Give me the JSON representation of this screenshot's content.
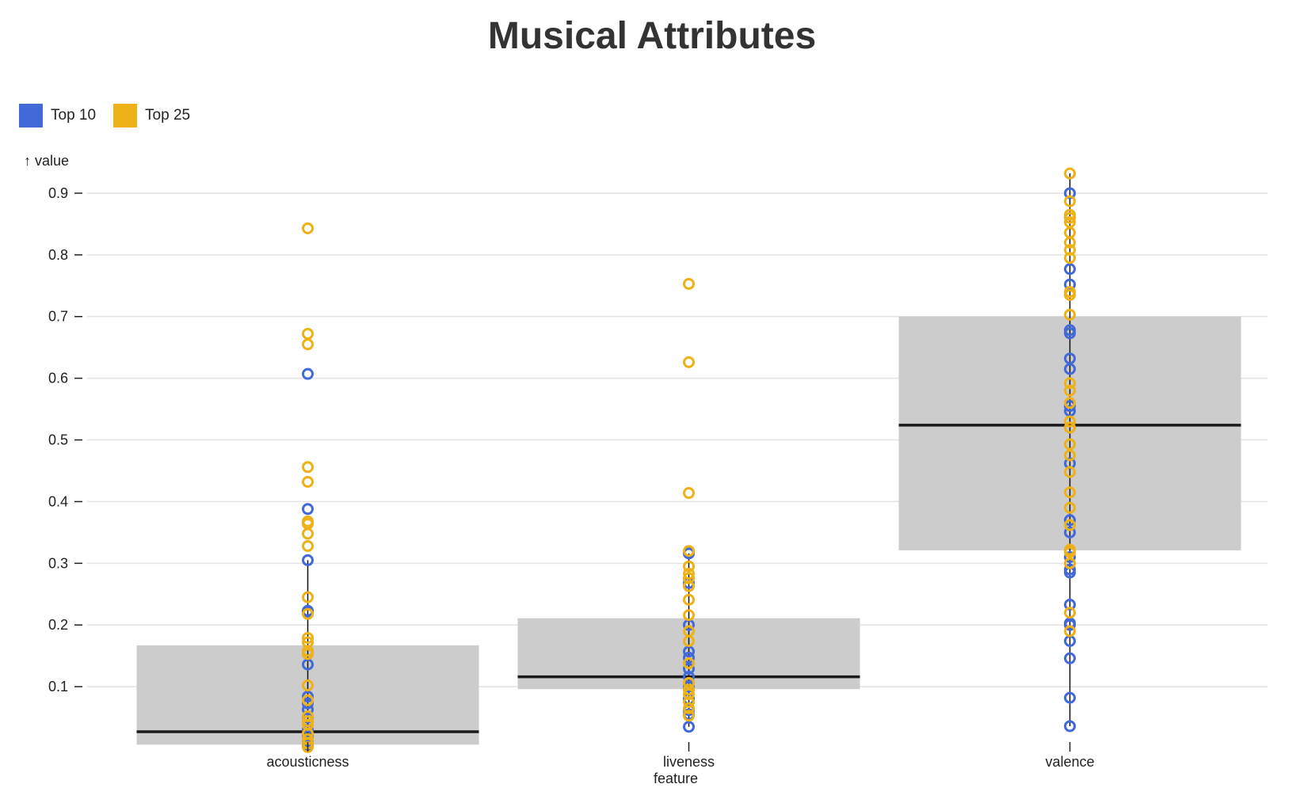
{
  "chart_data": {
    "type": "boxplot",
    "title": "Musical Attributes",
    "ylabel": "↑ value",
    "xlabel": "feature",
    "ylim": [
      0,
      0.95
    ],
    "yticks": [
      0.1,
      0.2,
      0.3,
      0.4,
      0.5,
      0.6,
      0.7,
      0.8,
      0.9
    ],
    "grid": true,
    "legend_position": "top-left",
    "categories": [
      "acousticness",
      "liveness",
      "valence"
    ],
    "legend": [
      {
        "name": "Top 10",
        "color": "#4169d8"
      },
      {
        "name": "Top 25",
        "color": "#efb118"
      }
    ],
    "boxes": [
      {
        "category": "acousticness",
        "q1": 0.006,
        "median": 0.027,
        "q3": 0.167,
        "whisker_low": 0.001,
        "whisker_high": 0.305
      },
      {
        "category": "liveness",
        "q1": 0.096,
        "median": 0.116,
        "q3": 0.211,
        "whisker_low": 0.035,
        "whisker_high": 0.316
      },
      {
        "category": "valence",
        "q1": 0.321,
        "median": 0.524,
        "q3": 0.7,
        "whisker_low": 0.036,
        "whisker_high": 0.932
      }
    ],
    "series": [
      {
        "name": "Top 10",
        "color": "#4169d8",
        "points": [
          {
            "category": "acousticness",
            "values": [
              0.607,
              0.388,
              0.305,
              0.223,
              0.22,
              0.136,
              0.084,
              0.073,
              0.063,
              0.05,
              0.03,
              0.02,
              0.012,
              0.006,
              0.003
            ]
          },
          {
            "category": "liveness",
            "values": [
              0.316,
              0.268,
              0.2,
              0.157,
              0.147,
              0.129,
              0.116,
              0.1,
              0.08,
              0.062,
              0.055,
              0.035
            ]
          },
          {
            "category": "valence",
            "values": [
              0.9,
              0.777,
              0.752,
              0.678,
              0.673,
              0.632,
              0.615,
              0.555,
              0.547,
              0.462,
              0.37,
              0.35,
              0.31,
              0.29,
              0.285,
              0.233,
              0.203,
              0.2,
              0.174,
              0.146,
              0.082,
              0.036
            ]
          }
        ]
      },
      {
        "name": "Top 25",
        "color": "#efb118",
        "points": [
          {
            "category": "acousticness",
            "values": [
              0.843,
              0.672,
              0.655,
              0.456,
              0.432,
              0.368,
              0.364,
              0.348,
              0.328,
              0.245,
              0.218,
              0.179,
              0.172,
              0.158,
              0.153,
              0.102,
              0.078,
              0.052,
              0.044,
              0.038,
              0.024,
              0.015,
              0.008,
              0.002
            ]
          },
          {
            "category": "liveness",
            "values": [
              0.753,
              0.626,
              0.414,
              0.32,
              0.295,
              0.283,
              0.276,
              0.263,
              0.241,
              0.216,
              0.19,
              0.174,
              0.138,
              0.106,
              0.095,
              0.088,
              0.075,
              0.065,
              0.053
            ]
          },
          {
            "category": "valence",
            "values": [
              0.932,
              0.887,
              0.865,
              0.86,
              0.853,
              0.836,
              0.82,
              0.808,
              0.795,
              0.74,
              0.735,
              0.703,
              0.592,
              0.58,
              0.56,
              0.53,
              0.52,
              0.493,
              0.475,
              0.448,
              0.415,
              0.39,
              0.362,
              0.322,
              0.318,
              0.3,
              0.22,
              0.19
            ]
          }
        ]
      }
    ]
  }
}
